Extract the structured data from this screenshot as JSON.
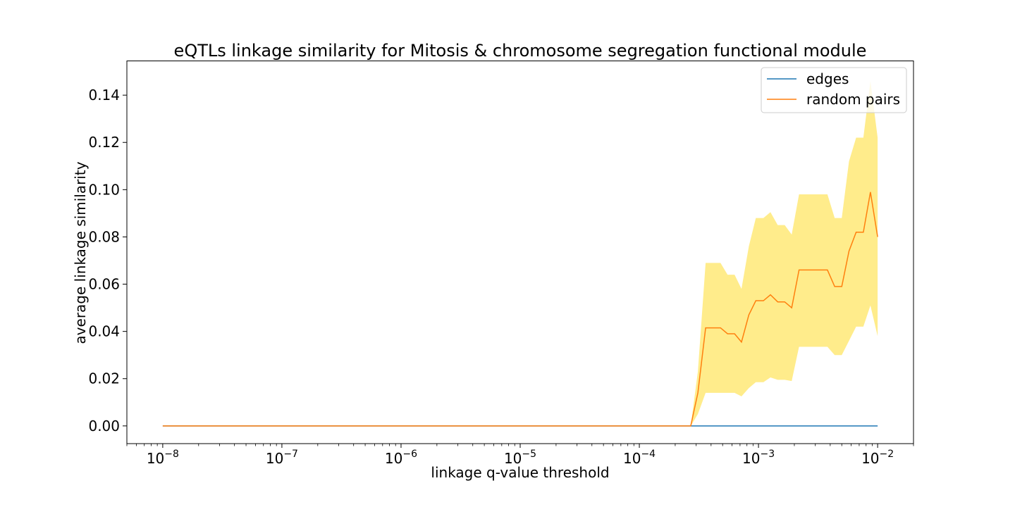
{
  "chart_data": {
    "type": "line",
    "title": "eQTLs linkage similarity for Mitosis & chromosome segregation functional module",
    "xlabel": "linkage q-value threshold",
    "ylabel": "average linkage similarity",
    "xscale": "log",
    "xlim": [
      5e-09,
      0.02
    ],
    "ylim": [
      -0.0075,
      0.1545
    ],
    "x_ticks": [
      {
        "value": 1e-08,
        "base": "10",
        "exp": "−8"
      },
      {
        "value": 1e-07,
        "base": "10",
        "exp": "−7"
      },
      {
        "value": 1e-06,
        "base": "10",
        "exp": "−6"
      },
      {
        "value": 1e-05,
        "base": "10",
        "exp": "−5"
      },
      {
        "value": 0.0001,
        "base": "10",
        "exp": "−4"
      },
      {
        "value": 0.001,
        "base": "10",
        "exp": "−3"
      },
      {
        "value": 0.01,
        "base": "10",
        "exp": "−2"
      }
    ],
    "y_ticks": [
      "0.00",
      "0.02",
      "0.04",
      "0.06",
      "0.08",
      "0.10",
      "0.12",
      "0.14"
    ],
    "grid": false,
    "legend_position": "top-right",
    "series": [
      {
        "name": "edges",
        "color": "#1f77b4",
        "x": [
          1e-08,
          0.01
        ],
        "values": [
          0.0,
          0.0
        ]
      },
      {
        "name": "random pairs",
        "color": "#ff7f0e",
        "x": [
          1e-08,
          0.00027,
          0.00031,
          0.00036,
          0.00041,
          0.00048,
          0.00055,
          0.00063,
          0.00072,
          0.00083,
          0.00095,
          0.0011,
          0.00126,
          0.00145,
          0.00166,
          0.0019,
          0.00219,
          0.00251,
          0.00288,
          0.0033,
          0.00379,
          0.00436,
          0.005,
          0.00575,
          0.0066,
          0.00759,
          0.0087,
          0.01
        ],
        "values": [
          0.0,
          0.0,
          0.014,
          0.0415,
          0.0415,
          0.0415,
          0.039,
          0.039,
          0.0355,
          0.047,
          0.053,
          0.053,
          0.0555,
          0.0525,
          0.0525,
          0.05,
          0.066,
          0.066,
          0.066,
          0.066,
          0.066,
          0.059,
          0.059,
          0.074,
          0.082,
          0.082,
          0.099,
          0.08
        ]
      }
    ],
    "band": {
      "color": "#ffec8b",
      "series": "random pairs",
      "x": [
        0.00027,
        0.00031,
        0.00036,
        0.00041,
        0.00048,
        0.00055,
        0.00063,
        0.00072,
        0.00083,
        0.00095,
        0.0011,
        0.00126,
        0.00145,
        0.00166,
        0.0019,
        0.00219,
        0.00251,
        0.00288,
        0.0033,
        0.00379,
        0.00436,
        0.005,
        0.00575,
        0.0066,
        0.00759,
        0.0087,
        0.01
      ],
      "lower": [
        0.0,
        0.005,
        0.014,
        0.014,
        0.014,
        0.014,
        0.014,
        0.0125,
        0.016,
        0.0185,
        0.0185,
        0.0205,
        0.0195,
        0.0195,
        0.019,
        0.0335,
        0.0335,
        0.0335,
        0.0335,
        0.0335,
        0.03,
        0.03,
        0.036,
        0.042,
        0.042,
        0.051,
        0.038
      ],
      "upper": [
        0.0,
        0.023,
        0.069,
        0.069,
        0.069,
        0.064,
        0.064,
        0.058,
        0.076,
        0.088,
        0.088,
        0.0905,
        0.085,
        0.085,
        0.081,
        0.098,
        0.098,
        0.098,
        0.098,
        0.098,
        0.088,
        0.088,
        0.112,
        0.122,
        0.122,
        0.146,
        0.122
      ]
    }
  }
}
